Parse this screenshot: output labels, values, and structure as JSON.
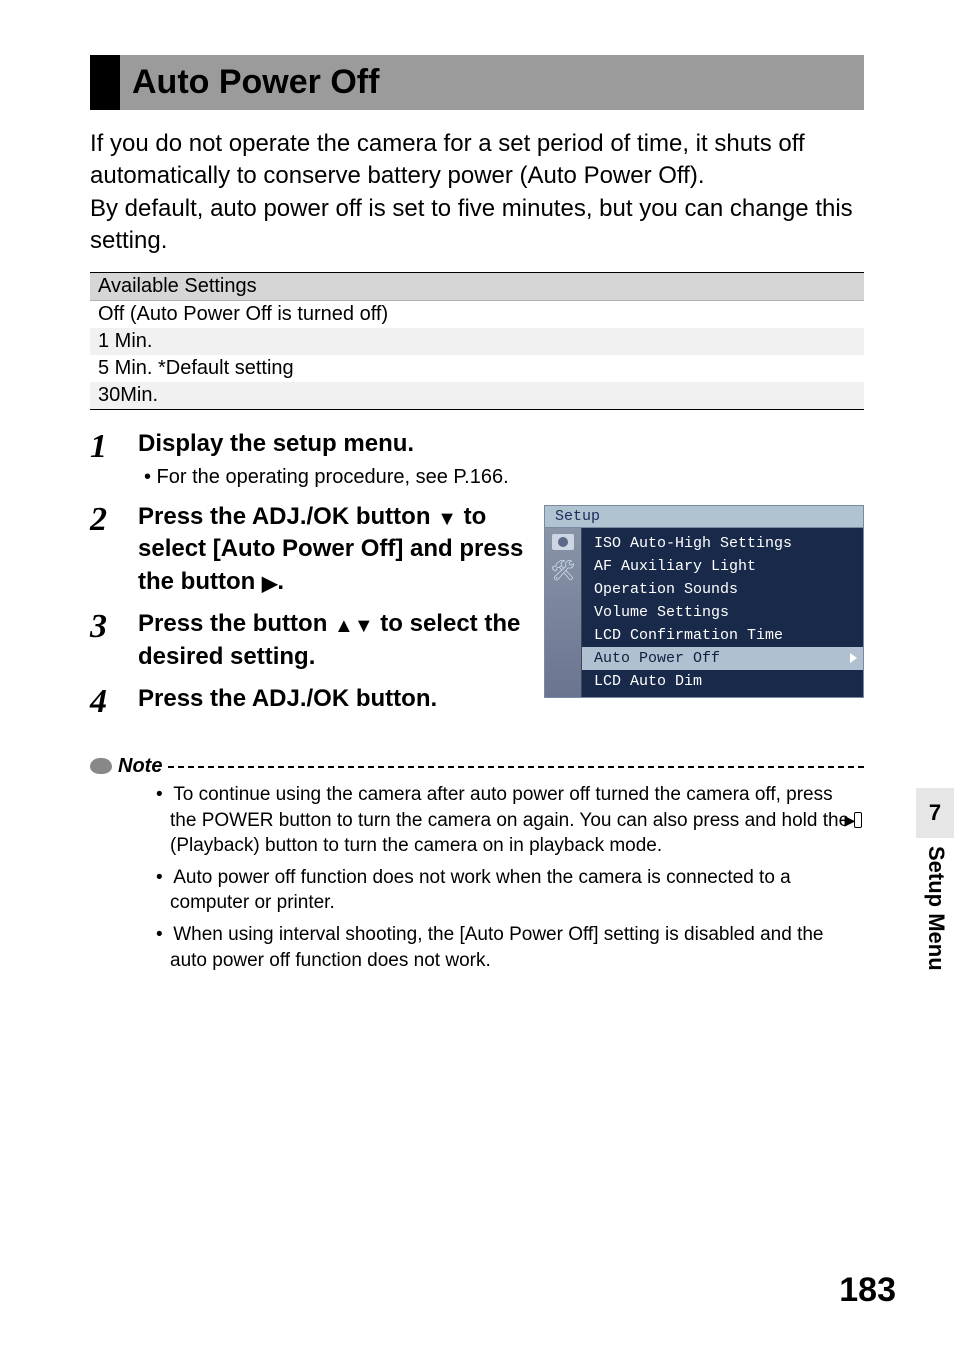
{
  "section": {
    "title": "Auto Power Off"
  },
  "intro": {
    "p1": "If you do not operate the camera for a set period of time, it shuts off automatically to conserve battery power (Auto Power Off).",
    "p2": "By default, auto power off is set to five minutes, but you can change this setting."
  },
  "table": {
    "header": "Available Settings",
    "rows": [
      "Off (Auto Power Off is turned off)",
      "1 Min.",
      "5 Min. *Default setting",
      "30Min."
    ]
  },
  "steps": {
    "s1": {
      "num": "1",
      "title": "Display the setup menu.",
      "sub": "•  For the operating procedure, see P.166."
    },
    "s2": {
      "num": "2",
      "part_a": "Press the ADJ./OK button ",
      "part_b": " to select [Auto Power Off] and press the button ",
      "part_c": ".",
      "tri_down": "▼",
      "tri_right": "▶"
    },
    "s3": {
      "num": "3",
      "part_a": "Press the button ",
      "part_b": " to select the desired setting.",
      "tri_updown": "▲▼"
    },
    "s4": {
      "num": "4",
      "title": "Press the ADJ./OK button."
    }
  },
  "screenshot": {
    "title": "Setup",
    "items": [
      "ISO Auto-High Settings",
      "AF Auxiliary Light",
      "Operation Sounds",
      "Volume Settings",
      "LCD Confirmation Time",
      "Auto Power Off",
      "LCD Auto Dim"
    ],
    "selected_index": 5
  },
  "note": {
    "label": "Note",
    "items": {
      "n1a": "To continue using the camera after auto power off turned the camera off, press the POWER button to turn the camera on again. You can also press and hold the ",
      "n1b": " (Playback) button to turn the camera on in playback mode.",
      "pb_glyph": "▶",
      "n2": "Auto power off function does not work when the camera is connected to a computer or printer.",
      "n3": "When using interval shooting, the [Auto Power Off] setting is disabled and the auto power off function does not work."
    }
  },
  "sidebar": {
    "num": "7",
    "label": "Setup Menu"
  },
  "page_number": "183",
  "colors": {
    "header_grey": "#9b9b9b",
    "table_header_bg": "#d6d6d6",
    "table_alt_bg": "#f1f1f1",
    "lcd_bg": "#18294a",
    "lcd_title_bg": "#b0c3d0",
    "lcd_sel_bg": "#b0c0d0",
    "sidebar_grey": "#e6e6e6"
  }
}
